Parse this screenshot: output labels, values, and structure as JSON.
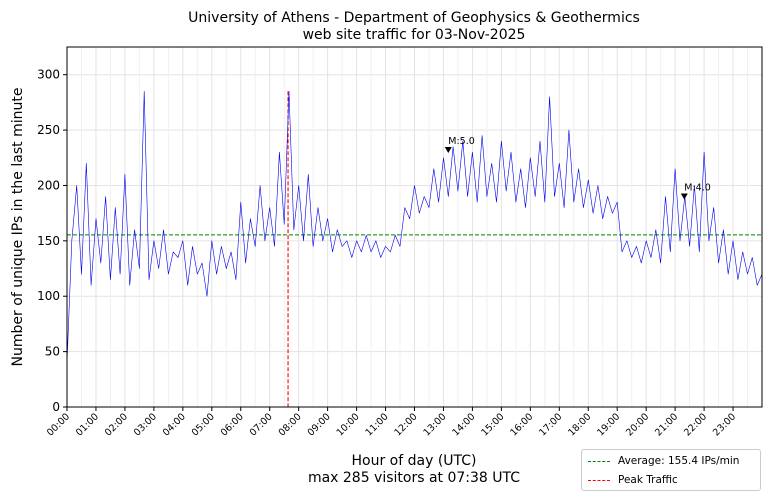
{
  "chart_data": {
    "type": "line",
    "title": "University of Athens - Department of Geophysics & Geothermics",
    "subtitle": "web site traffic for 03-Nov-2025",
    "xlabel": "Hour of day (UTC)",
    "xlabel_sub": "max 285 visitors at 07:38 UTC",
    "ylabel": "Number of unique IPs in the last minute",
    "xlim": [
      0,
      1440
    ],
    "ylim": [
      0,
      325
    ],
    "yticks": [
      0,
      50,
      100,
      150,
      200,
      250,
      300
    ],
    "xtick_labels": [
      "00:00",
      "01:00",
      "02:00",
      "03:00",
      "04:00",
      "05:00",
      "06:00",
      "07:00",
      "08:00",
      "09:00",
      "10:00",
      "11:00",
      "12:00",
      "13:00",
      "14:00",
      "15:00",
      "16:00",
      "17:00",
      "18:00",
      "19:00",
      "20:00",
      "21:00",
      "22:00",
      "23:00"
    ],
    "grid": true,
    "legend_position": "below-right",
    "series": [
      {
        "color": "#0000ee",
        "x_minutes": [
          0,
          10,
          20,
          30,
          40,
          50,
          60,
          70,
          80,
          90,
          100,
          110,
          120,
          130,
          140,
          150,
          160,
          170,
          180,
          190,
          200,
          210,
          220,
          230,
          240,
          250,
          260,
          270,
          280,
          290,
          300,
          310,
          320,
          330,
          340,
          350,
          360,
          370,
          380,
          390,
          400,
          410,
          420,
          430,
          440,
          450,
          460,
          470,
          480,
          490,
          500,
          510,
          520,
          530,
          540,
          550,
          560,
          570,
          580,
          590,
          600,
          610,
          620,
          630,
          640,
          650,
          660,
          670,
          680,
          690,
          700,
          710,
          720,
          730,
          740,
          750,
          760,
          770,
          780,
          790,
          800,
          810,
          820,
          830,
          840,
          850,
          860,
          870,
          880,
          890,
          900,
          910,
          920,
          930,
          940,
          950,
          960,
          970,
          980,
          990,
          1000,
          1010,
          1020,
          1030,
          1040,
          1050,
          1060,
          1070,
          1080,
          1090,
          1100,
          1110,
          1120,
          1130,
          1140,
          1150,
          1160,
          1170,
          1180,
          1190,
          1200,
          1210,
          1220,
          1230,
          1240,
          1250,
          1260,
          1270,
          1280,
          1290,
          1300,
          1310,
          1320,
          1330,
          1340,
          1350,
          1360,
          1370,
          1380,
          1390,
          1400,
          1410,
          1420,
          1430,
          1440
        ],
        "values": [
          40,
          150,
          200,
          120,
          220,
          110,
          170,
          130,
          190,
          115,
          180,
          120,
          210,
          110,
          160,
          125,
          285,
          115,
          150,
          125,
          160,
          120,
          140,
          135,
          150,
          110,
          145,
          120,
          130,
          100,
          150,
          120,
          145,
          125,
          140,
          115,
          185,
          130,
          170,
          145,
          200,
          150,
          180,
          145,
          230,
          165,
          285,
          160,
          200,
          150,
          210,
          145,
          180,
          150,
          170,
          140,
          160,
          145,
          150,
          135,
          150,
          140,
          155,
          140,
          150,
          135,
          145,
          140,
          155,
          145,
          180,
          170,
          200,
          175,
          190,
          180,
          215,
          185,
          225,
          190,
          235,
          195,
          240,
          190,
          230,
          185,
          245,
          190,
          220,
          185,
          240,
          195,
          230,
          185,
          215,
          180,
          225,
          190,
          240,
          185,
          280,
          190,
          220,
          180,
          250,
          185,
          215,
          180,
          205,
          175,
          200,
          170,
          190,
          175,
          185,
          140,
          150,
          135,
          145,
          130,
          150,
          135,
          160,
          130,
          190,
          140,
          215,
          150,
          190,
          145,
          200,
          140,
          230,
          150,
          180,
          130,
          160,
          120,
          150,
          115,
          140,
          120,
          135,
          110,
          120
        ]
      }
    ],
    "reference_lines": [
      {
        "kind": "horizontal",
        "y": 155.4,
        "color": "#008000",
        "label": "Average: 155.4 IPs/min"
      },
      {
        "kind": "vertical",
        "x": 458,
        "y_top": 285,
        "color": "#ff0000",
        "label": "Peak Traffic"
      }
    ],
    "annotations": [
      {
        "text": "M:5.0",
        "x": 790,
        "y": 232
      },
      {
        "text": "M:4.0",
        "x": 1279,
        "y": 190
      }
    ]
  }
}
